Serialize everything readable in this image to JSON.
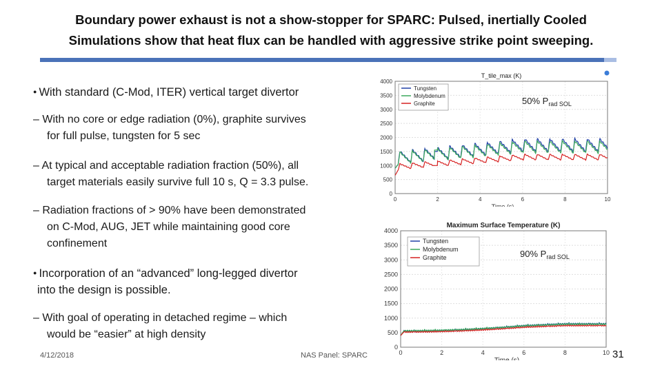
{
  "title": {
    "line1": "Boundary power exhaust is not a show-stopper for  SPARC: Pulsed, inertially Cooled",
    "line2": "Simulations show that heat flux can be handled with aggressive strike point sweeping."
  },
  "bullets": [
    {
      "text": "With standard (C-Mod, ITER) vertical target divertor",
      "subs": [
        {
          "line1": "– With no core or edge radiation (0%), graphite survives",
          "line2": "for full pulse, tungsten for 5 sec"
        },
        {
          "line1": "– At typical and acceptable radiation fraction (50%), all",
          "line2": "target materials easily survive full 10 s, Q = 3.3 pulse."
        },
        {
          "line1": "– Radiation fractions of > 90% have been demonstrated",
          "line2": "on C-Mod, AUG, JET while maintaining good core",
          "line3": "confinement"
        }
      ]
    },
    {
      "line1": "Incorporation of an “advanced” long-legged divertor",
      "line2": "into the design is possible.",
      "subs": [
        {
          "line1": "– With goal of operating in detached regime – which",
          "line2": "would be “easier” at high density"
        }
      ]
    }
  ],
  "footer": {
    "date": "4/12/2018",
    "center": "NAS Panel: SPARC",
    "page": "31"
  },
  "colors": {
    "accent": "#4a72b8",
    "tungsten": "#1f3fa6",
    "molybdenum": "#3aa85a",
    "graphite": "#d62020"
  },
  "chart_data": [
    {
      "type": "line",
      "title": "T_tile_max (K)",
      "annotation": {
        "main": "50% P",
        "sub": "rad SOL"
      },
      "xlabel": "Time (s)",
      "ylabel": "",
      "xlim": [
        0,
        10
      ],
      "ylim": [
        0,
        4000
      ],
      "xticks": [
        "0",
        "2",
        "4",
        "6",
        "8",
        "10"
      ],
      "yticks": [
        "0",
        "500",
        "1000",
        "1500",
        "2000",
        "2500",
        "3000",
        "3500",
        "4000"
      ],
      "legend": [
        "Tungsten",
        "Molybdenum",
        "Graphite"
      ],
      "series": [
        {
          "name": "Tungsten",
          "start": 900,
          "baseline": 1050,
          "amplitude": 450,
          "drift": 450,
          "spike": 1500
        },
        {
          "name": "Molybdenum",
          "start": 900,
          "baseline": 1050,
          "amplitude": 420,
          "drift": 400,
          "spike": 1550
        },
        {
          "name": "Graphite",
          "start": 650,
          "baseline": 850,
          "amplitude": 200,
          "drift": 350,
          "spike": 1000
        }
      ],
      "periods": 17
    },
    {
      "type": "line",
      "title": "Maximum Surface Temperature (K)",
      "annotation": {
        "main": "90% P",
        "sub": "rad SOL"
      },
      "xlabel": "Time (s)",
      "ylabel": "",
      "xlim": [
        0,
        10
      ],
      "ylim": [
        0,
        4000
      ],
      "xticks": [
        "0",
        "2",
        "4",
        "6",
        "8",
        "10"
      ],
      "yticks": [
        "0",
        "500",
        "1000",
        "1500",
        "2000",
        "2500",
        "3000",
        "3500",
        "4000"
      ],
      "legend": [
        "Tungsten",
        "Molybdenum",
        "Graphite"
      ],
      "series": [
        {
          "name": "Tungsten",
          "start": 400,
          "baseline": 550,
          "amplitude": 60,
          "drift": 250,
          "spike": 0
        },
        {
          "name": "Molybdenum",
          "start": 400,
          "baseline": 560,
          "amplitude": 60,
          "drift": 230,
          "spike": 0
        },
        {
          "name": "Graphite",
          "start": 400,
          "baseline": 520,
          "amplitude": 40,
          "drift": 220,
          "spike": 0
        }
      ],
      "periods": 20
    }
  ]
}
